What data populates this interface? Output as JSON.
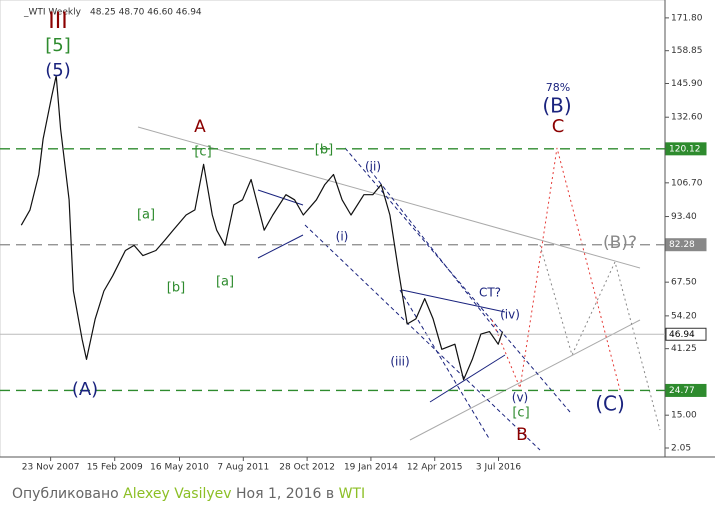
{
  "chart_data": {
    "type": "line",
    "title": "_WTI Weekly",
    "subtitle": "48.25 48.70 46.60 46.94",
    "x": [
      "2007-05",
      "2007-07",
      "2007-09",
      "2007-10",
      "2007-12",
      "2008-01",
      "2008-02",
      "2008-04",
      "2008-05",
      "2008-07",
      "2008-08",
      "2008-10",
      "2008-12",
      "2009-02",
      "2009-05",
      "2009-07",
      "2009-09",
      "2009-12",
      "2010-02",
      "2010-04",
      "2010-07",
      "2010-09",
      "2010-11",
      "2011-01",
      "2011-02",
      "2011-04",
      "2011-06",
      "2011-08",
      "2011-10",
      "2012-01",
      "2012-03",
      "2012-06",
      "2012-08",
      "2012-10",
      "2013-01",
      "2013-03",
      "2013-05",
      "2013-07",
      "2013-09",
      "2013-12",
      "2014-02",
      "2014-04",
      "2014-06",
      "2014-08",
      "2014-10",
      "2014-12",
      "2015-02",
      "2015-04",
      "2015-06",
      "2015-09",
      "2015-11",
      "2016-01",
      "2016-03",
      "2016-05",
      "2016-07",
      "2016-08"
    ],
    "series": [
      {
        "name": "_WTI Weekly",
        "color": "#111111",
        "values": [
          90,
          96,
          110,
          124,
          141,
          149,
          128,
          100,
          64,
          45,
          37,
          53,
          64,
          70,
          80,
          82,
          78,
          80,
          84,
          88,
          94,
          96,
          114,
          94,
          88,
          82,
          98,
          100,
          108,
          88,
          94,
          102,
          100,
          94,
          100,
          106,
          110,
          100,
          94,
          102,
          102,
          106,
          94,
          72,
          51,
          53,
          61,
          53,
          41,
          43,
          29,
          37,
          47,
          48,
          43,
          48
        ]
      }
    ],
    "xlim": [
      "2007-05-06",
      "2019-09-15"
    ],
    "xticks": [
      {
        "value": "2007-11-23",
        "label": "23 Nov 2007"
      },
      {
        "value": "2009-02-15",
        "label": "15 Feb 2009"
      },
      {
        "value": "2010-05-16",
        "label": "16 May 2010"
      },
      {
        "value": "2011-08-07",
        "label": "7 Aug 2011"
      },
      {
        "value": "2012-10-28",
        "label": "28 Oct 2012"
      },
      {
        "value": "2014-01-19",
        "label": "19 Jan 2014"
      },
      {
        "value": "2015-04-12",
        "label": "12 Apr 2015"
      },
      {
        "value": "2016-07-03",
        "label": "3 Jul 2016"
      }
    ],
    "ylim": [
      -1.5,
      175.7
    ],
    "yticks": [
      {
        "value": 171.8,
        "label": "171.80"
      },
      {
        "value": 158.85,
        "label": "158.85"
      },
      {
        "value": 145.9,
        "label": "145.90"
      },
      {
        "value": 132.6,
        "label": "132.60"
      },
      {
        "value": 106.7,
        "label": "106.70"
      },
      {
        "value": 93.4,
        "label": "93.40"
      },
      {
        "value": 67.5,
        "label": "67.50"
      },
      {
        "value": 54.2,
        "label": "54.20"
      },
      {
        "value": 41.25,
        "label": "41.25"
      },
      {
        "value": 15,
        "label": "15.00"
      },
      {
        "value": 2.05,
        "label": "2.05"
      }
    ],
    "levels": [
      {
        "value": 120.12,
        "color": "#2e8b2e",
        "style": "dashed"
      },
      {
        "value": 82.28,
        "color": "#888888",
        "style": "dashed"
      },
      {
        "value": 24.77,
        "color": "#2e8b2e",
        "style": "dashed"
      },
      {
        "value": 46.94,
        "color": "#bbbbbb",
        "style": "solid"
      }
    ],
    "annotations": [
      {
        "text": "III",
        "color": "#8b0000"
      },
      {
        "text": "[5]",
        "color": "#2e8b2e"
      },
      {
        "text": "(5)",
        "color": "#1a237e"
      },
      {
        "text": "(A)",
        "color": "#1a237e"
      },
      {
        "text": "A",
        "color": "#8b0000"
      },
      {
        "text": "[c]",
        "color": "#2e8b2e"
      },
      {
        "text": "[a]",
        "color": "#2e8b2e"
      },
      {
        "text": "[b]",
        "color": "#2e8b2e"
      },
      {
        "text": "[a]",
        "color": "#2e8b2e"
      },
      {
        "text": "[b]",
        "color": "#2e8b2e"
      },
      {
        "text": "(i)",
        "color": "#1a237e"
      },
      {
        "text": "(ii)",
        "color": "#1a237e"
      },
      {
        "text": "(iii)",
        "color": "#1a237e"
      },
      {
        "text": "CT?",
        "color": "#1a237e"
      },
      {
        "text": "(iv)",
        "color": "#1a237e"
      },
      {
        "text": "(v)",
        "color": "#1a237e"
      },
      {
        "text": "[c]",
        "color": "#2e8b2e"
      },
      {
        "text": "B",
        "color": "#8b0000"
      },
      {
        "text": "78%",
        "color": "#1a237e"
      },
      {
        "text": "(B)",
        "color": "#1a237e"
      },
      {
        "text": "C",
        "color": "#8b0000"
      },
      {
        "text": "(B)?",
        "color": "#888888"
      },
      {
        "text": "(C)",
        "color": "#1a237e"
      }
    ]
  },
  "footer": {
    "prefix": "Опубликовано",
    "author": "Alexey Vasilyev",
    "date": "Ноя 1, 2016 в",
    "symbol": "WTI"
  }
}
